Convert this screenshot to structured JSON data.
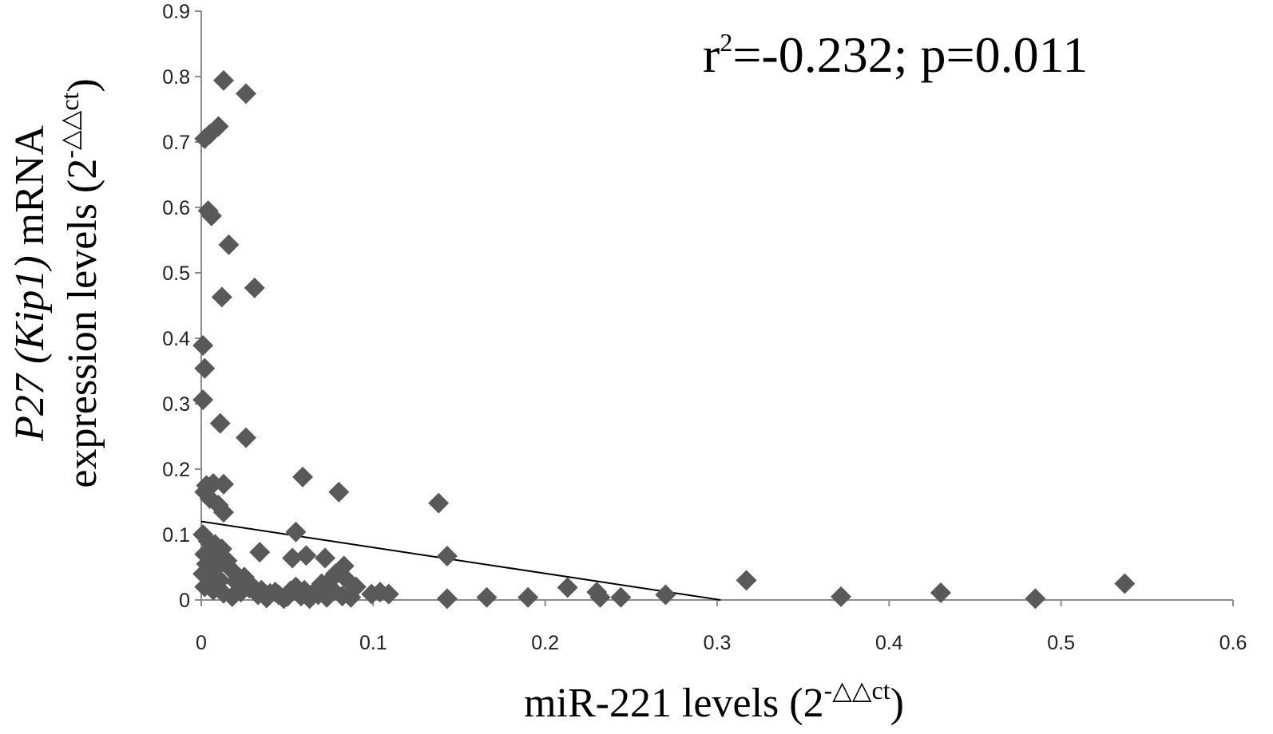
{
  "chart_data": {
    "type": "scatter",
    "annotation": {
      "main": "r",
      "sup": "2",
      "rest": "=-0.232; p=0.011"
    },
    "xlabel": {
      "main": "miR-221 levels (2",
      "sup": "-△△ct",
      "close": ")"
    },
    "ylabel": {
      "line1_italic": "P27 (Kip1)",
      "line1_rest": " mRNA",
      "line2_main": "expression levels (2",
      "line2_sup": "-△△ct",
      "line2_close": ")"
    },
    "xlim": [
      0,
      0.6
    ],
    "ylim": [
      0,
      0.9
    ],
    "xticks": [
      0,
      0.1,
      0.2,
      0.3,
      0.4,
      0.5,
      0.6
    ],
    "yticks": [
      0,
      0.1,
      0.2,
      0.3,
      0.4,
      0.5,
      0.6,
      0.7,
      0.8,
      0.9
    ],
    "xtick_labels": [
      "0",
      "0.1",
      "0.2",
      "0.3",
      "0.4",
      "0.5",
      "0.6"
    ],
    "ytick_labels": [
      "0",
      "0.1",
      "0.2",
      "0.3",
      "0.4",
      "0.5",
      "0.6",
      "0.7",
      "0.8",
      "0.9"
    ],
    "grid": false,
    "marker": "diamond",
    "marker_color": "#595959",
    "trendline": {
      "x": [
        0.0,
        0.302
      ],
      "y": [
        0.12,
        0.0
      ],
      "color": "#000000"
    },
    "points": [
      [
        0.013,
        0.794
      ],
      [
        0.026,
        0.774
      ],
      [
        0.01,
        0.724
      ],
      [
        0.005,
        0.712
      ],
      [
        0.002,
        0.705
      ],
      [
        0.004,
        0.595
      ],
      [
        0.006,
        0.587
      ],
      [
        0.016,
        0.543
      ],
      [
        0.031,
        0.477
      ],
      [
        0.012,
        0.463
      ],
      [
        0.001,
        0.389
      ],
      [
        0.002,
        0.354
      ],
      [
        0.001,
        0.306
      ],
      [
        0.011,
        0.27
      ],
      [
        0.026,
        0.248
      ],
      [
        0.059,
        0.188
      ],
      [
        0.08,
        0.165
      ],
      [
        0.138,
        0.148
      ],
      [
        0.003,
        0.175
      ],
      [
        0.007,
        0.178
      ],
      [
        0.013,
        0.177
      ],
      [
        0.002,
        0.165
      ],
      [
        0.005,
        0.155
      ],
      [
        0.01,
        0.145
      ],
      [
        0.013,
        0.134
      ],
      [
        0.055,
        0.104
      ],
      [
        0.143,
        0.067
      ],
      [
        0.034,
        0.073
      ],
      [
        0.061,
        0.068
      ],
      [
        0.072,
        0.064
      ],
      [
        0.053,
        0.064
      ],
      [
        0.083,
        0.052
      ],
      [
        0.001,
        0.1
      ],
      [
        0.004,
        0.09
      ],
      [
        0.008,
        0.085
      ],
      [
        0.012,
        0.078
      ],
      [
        0.002,
        0.07
      ],
      [
        0.006,
        0.065
      ],
      [
        0.015,
        0.06
      ],
      [
        0.003,
        0.055
      ],
      [
        0.009,
        0.05
      ],
      [
        0.018,
        0.045
      ],
      [
        0.001,
        0.04
      ],
      [
        0.005,
        0.035
      ],
      [
        0.011,
        0.03
      ],
      [
        0.02,
        0.028
      ],
      [
        0.025,
        0.035
      ],
      [
        0.03,
        0.02
      ],
      [
        0.035,
        0.015
      ],
      [
        0.04,
        0.01
      ],
      [
        0.045,
        0.008
      ],
      [
        0.05,
        0.005
      ],
      [
        0.055,
        0.02
      ],
      [
        0.06,
        0.015
      ],
      [
        0.065,
        0.01
      ],
      [
        0.07,
        0.025
      ],
      [
        0.075,
        0.03
      ],
      [
        0.078,
        0.04
      ],
      [
        0.085,
        0.03
      ],
      [
        0.09,
        0.02
      ],
      [
        0.002,
        0.02
      ],
      [
        0.007,
        0.015
      ],
      [
        0.013,
        0.01
      ],
      [
        0.018,
        0.005
      ],
      [
        0.023,
        0.012
      ],
      [
        0.028,
        0.018
      ],
      [
        0.033,
        0.008
      ],
      [
        0.038,
        0.003
      ],
      [
        0.043,
        0.012
      ],
      [
        0.048,
        0.002
      ],
      [
        0.052,
        0.014
      ],
      [
        0.058,
        0.006
      ],
      [
        0.063,
        0.002
      ],
      [
        0.068,
        0.008
      ],
      [
        0.073,
        0.004
      ],
      [
        0.077,
        0.014
      ],
      [
        0.082,
        0.006
      ],
      [
        0.087,
        0.004
      ],
      [
        0.099,
        0.009
      ],
      [
        0.104,
        0.012
      ],
      [
        0.109,
        0.009
      ],
      [
        0.143,
        0.002
      ],
      [
        0.166,
        0.004
      ],
      [
        0.19,
        0.004
      ],
      [
        0.213,
        0.019
      ],
      [
        0.23,
        0.012
      ],
      [
        0.232,
        0.004
      ],
      [
        0.244,
        0.004
      ],
      [
        0.27,
        0.008
      ],
      [
        0.317,
        0.03
      ],
      [
        0.372,
        0.005
      ],
      [
        0.43,
        0.011
      ],
      [
        0.485,
        0.002
      ],
      [
        0.537,
        0.025
      ]
    ]
  }
}
